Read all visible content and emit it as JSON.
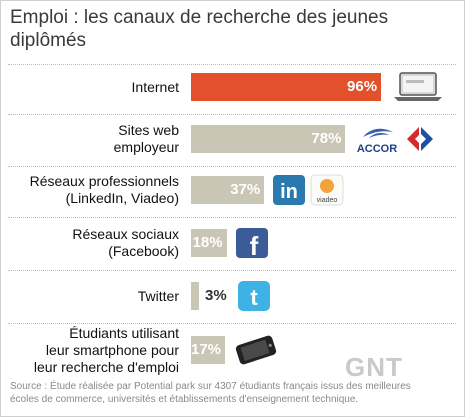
{
  "chart_data": {
    "type": "bar",
    "title": "Emploi : les canaux de recherche des jeunes diplômés",
    "categories": [
      "Internet",
      "Sites web employeur",
      "Réseaux professionnels (LinkedIn, Viadeo)",
      "Réseaux sociaux (Facebook)",
      "Twitter",
      "Étudiants utilisant leur smartphone pour leur recherche d'emploi"
    ],
    "category_lines": [
      [
        "Internet"
      ],
      [
        "Sites web",
        "employeur"
      ],
      [
        "Réseaux professionnels",
        "(LinkedIn, Viadeo)"
      ],
      [
        "Réseaux sociaux",
        "(Facebook)"
      ],
      [
        "Twitter"
      ],
      [
        "Étudiants utilisant",
        "leur smartphone pour",
        "leur recherche d'emploi"
      ]
    ],
    "values": [
      96,
      78,
      37,
      18,
      3,
      17
    ],
    "value_labels": [
      "96%",
      "78%",
      "37%",
      "18%",
      "3%",
      "17%"
    ],
    "unit": "%",
    "xlim": [
      0,
      100
    ],
    "highlight_color": "#e2512b",
    "bar_color": "#c9c6b6",
    "logos": [
      [
        "laptop-icon"
      ],
      [
        "accor-logo",
        "carrefour-logo"
      ],
      [
        "linkedin-logo",
        "viadeo-logo"
      ],
      [
        "facebook-logo"
      ],
      [
        "twitter-logo"
      ],
      [
        "smartphone-icon"
      ]
    ],
    "logo_texts": {
      "accor": "ACCOR",
      "linkedin": "in",
      "viadeo": "viadeo",
      "facebook": "f",
      "twitter": "t"
    }
  },
  "source_lines": [
    "Source : Étude réalisée par Potential park sur 4307 étudiants français issus des meilleures",
    "écoles de commerce, universités et établissements d'enseignement technique."
  ],
  "watermark": "GNT"
}
